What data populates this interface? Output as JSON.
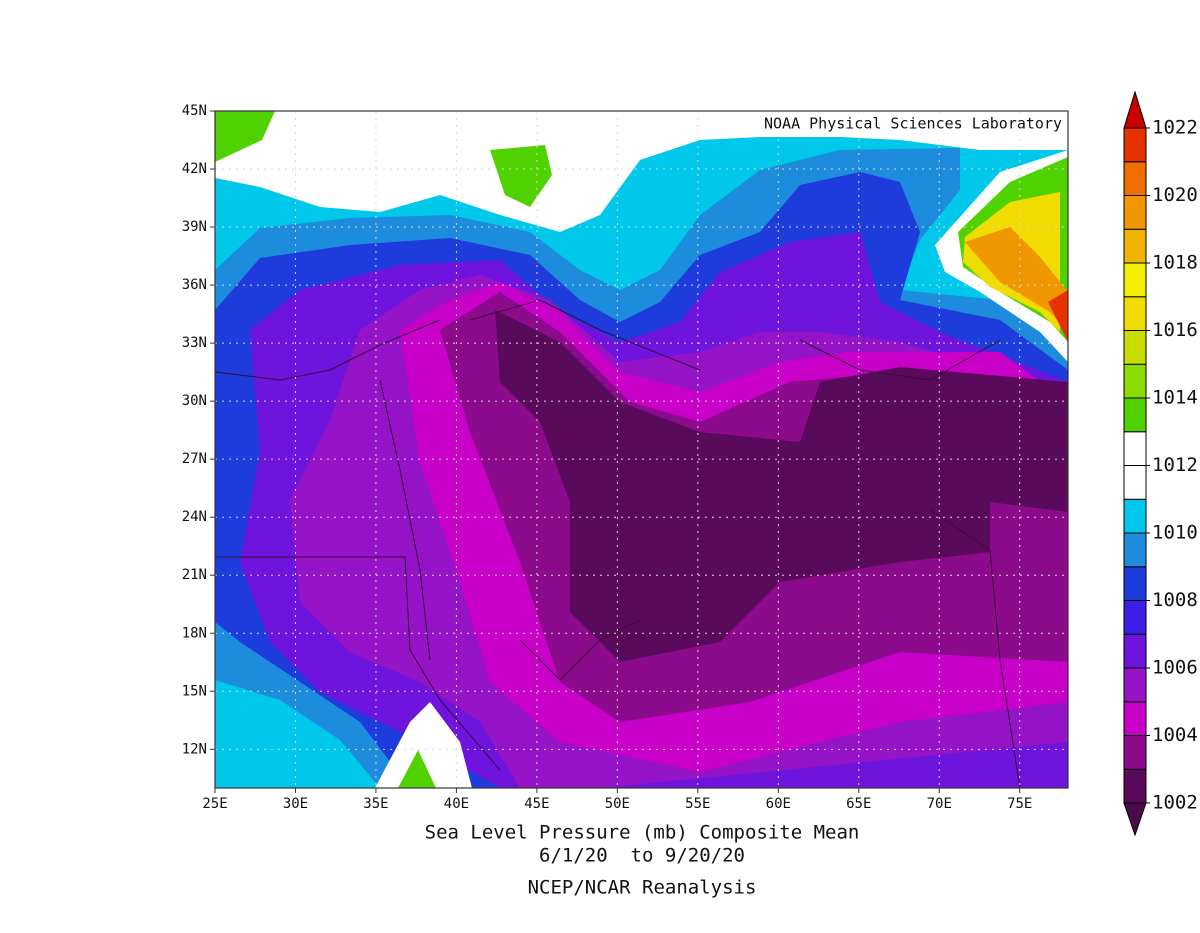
{
  "chart_data": {
    "type": "contour-map",
    "title": "Sea Level Pressure (mb) Composite Mean",
    "subtitle": "6/1/20  to 9/20/20",
    "source": "NCEP/NCAR Reanalysis",
    "credit": "NOAA Physical Sciences Laboratory",
    "xlim": [
      25,
      78
    ],
    "ylim": [
      10,
      45
    ],
    "xticks": [
      {
        "value": 25,
        "label": "25E"
      },
      {
        "value": 30,
        "label": "30E"
      },
      {
        "value": 35,
        "label": "35E"
      },
      {
        "value": 40,
        "label": "40E"
      },
      {
        "value": 45,
        "label": "45E"
      },
      {
        "value": 50,
        "label": "50E"
      },
      {
        "value": 55,
        "label": "55E"
      },
      {
        "value": 60,
        "label": "60E"
      },
      {
        "value": 65,
        "label": "65E"
      },
      {
        "value": 70,
        "label": "70E"
      },
      {
        "value": 75,
        "label": "75E"
      }
    ],
    "yticks": [
      {
        "value": 12,
        "label": "12N"
      },
      {
        "value": 15,
        "label": "15N"
      },
      {
        "value": 18,
        "label": "18N"
      },
      {
        "value": 21,
        "label": "21N"
      },
      {
        "value": 24,
        "label": "24N"
      },
      {
        "value": 27,
        "label": "27N"
      },
      {
        "value": 30,
        "label": "30N"
      },
      {
        "value": 33,
        "label": "33N"
      },
      {
        "value": 36,
        "label": "36N"
      },
      {
        "value": 39,
        "label": "39N"
      },
      {
        "value": 42,
        "label": "42N"
      },
      {
        "value": 45,
        "label": "45N"
      }
    ],
    "grid": true,
    "colorbar": {
      "ticks": [
        1002,
        1004,
        1006,
        1008,
        1010,
        1012,
        1014,
        1016,
        1018,
        1020,
        1022
      ],
      "colors": [
        "#4b0a4b",
        "#5a0a5a",
        "#8c0a8c",
        "#c800c8",
        "#9614c8",
        "#6e14dc",
        "#3c1ee6",
        "#1e3cdc",
        "#1e8cdc",
        "#00c8eb",
        "#ffffff",
        "#ffffff",
        "#50d200",
        "#8cdc00",
        "#c8dc00",
        "#f0dc00",
        "#f5f000",
        "#f0b400",
        "#f09600",
        "#f06e00",
        "#e63200",
        "#c80000"
      ]
    }
  }
}
